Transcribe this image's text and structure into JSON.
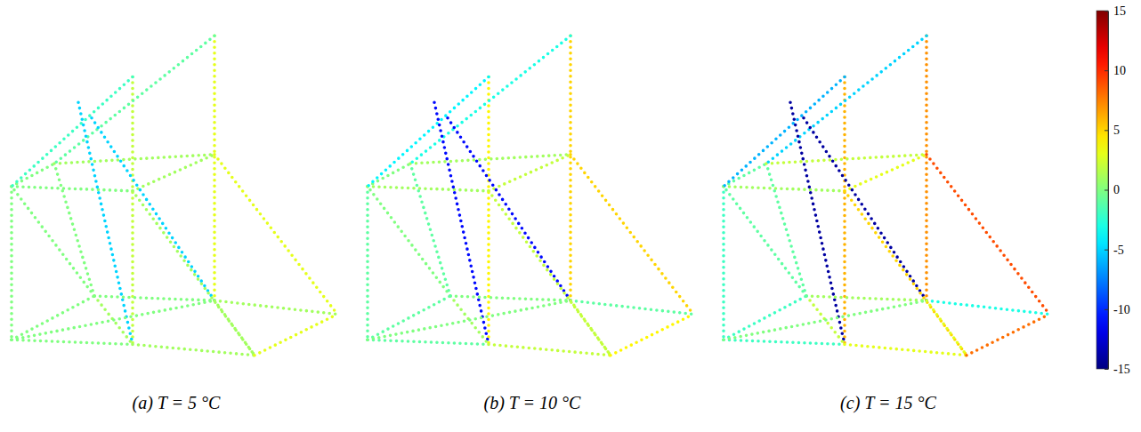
{
  "chart_data": {
    "type": "scatter",
    "tick_labels": false,
    "xlim": [
      -5,
      375
    ],
    "ylim": [
      -5,
      365
    ],
    "nodes": {
      "x": [
        0,
        0,
        48,
        228,
        136,
        136,
        136,
        228,
        228,
        93,
        273,
        366,
        75,
        90
      ],
      "y": [
        22,
        190,
        215,
        225,
        185,
        310,
        17,
        355,
        65,
        70,
        5,
        50,
        282,
        265
      ]
    },
    "members": [
      [
        1,
        0
      ],
      [
        5,
        6
      ],
      [
        7,
        8
      ],
      [
        1,
        2
      ],
      [
        2,
        3
      ],
      [
        1,
        4
      ],
      [
        4,
        3
      ],
      [
        5,
        1
      ],
      [
        7,
        2
      ],
      [
        12,
        6
      ],
      [
        13,
        8
      ],
      [
        3,
        11
      ],
      [
        4,
        10
      ],
      [
        0,
        6
      ],
      [
        6,
        10
      ],
      [
        0,
        9
      ],
      [
        9,
        8
      ],
      [
        8,
        11
      ],
      [
        10,
        11
      ],
      [
        9,
        6
      ],
      [
        0,
        8
      ],
      [
        9,
        1
      ],
      [
        9,
        2
      ],
      [
        8,
        10
      ]
    ],
    "panels": [
      {
        "title": "(a) T = 5 °C",
        "values": [
          0,
          2,
          3,
          0,
          1,
          0,
          1,
          -2,
          -1,
          -5,
          -5,
          3,
          1,
          0,
          1,
          0,
          0,
          1,
          3,
          1,
          0,
          0,
          0,
          1
        ]
      },
      {
        "title": "(b) T = 10 °C",
        "values": [
          -1,
          4,
          5,
          0,
          1,
          1,
          2,
          -4,
          -3,
          -11,
          -11,
          5,
          2,
          -1,
          2,
          -1,
          0,
          -1,
          4,
          1,
          0,
          0,
          -1,
          2
        ]
      },
      {
        "title": "(c) T = 15 °C",
        "values": [
          -2,
          6,
          7,
          -1,
          2,
          1,
          3,
          -6,
          -5,
          -14,
          -14,
          9,
          5,
          -2,
          3,
          -2,
          1,
          -3,
          8,
          2,
          0,
          -1,
          -1,
          3
        ]
      }
    ],
    "colorbar": {
      "range": [
        -15,
        15
      ],
      "ticks": [
        -15,
        -10,
        -5,
        0,
        5,
        10,
        15
      ]
    }
  }
}
